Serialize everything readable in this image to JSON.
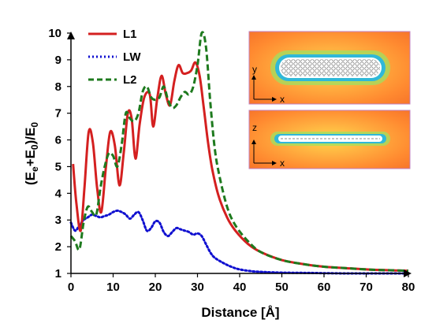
{
  "chart_data": {
    "type": "line",
    "xlabel": "Distance [Å]",
    "ylabel_parts": [
      "(E",
      "e",
      "+E",
      "0",
      ")/E",
      "0"
    ],
    "xlim": [
      0,
      80
    ],
    "ylim": [
      1,
      10
    ],
    "xticks": [
      "0",
      "10",
      "20",
      "30",
      "40",
      "50",
      "60",
      "70",
      "80"
    ],
    "yticks": [
      "1",
      "2",
      "3",
      "4",
      "5",
      "6",
      "7",
      "8",
      "9",
      "10"
    ],
    "legend_position": "top-left",
    "series": [
      {
        "name": "L1",
        "color": "#d42020",
        "style": "solid",
        "x": [
          0.5,
          1.3,
          2.3,
          3.2,
          4.2,
          5.2,
          6.2,
          7.2,
          8.3,
          9.3,
          10.4,
          11.5,
          12.5,
          13.5,
          14.4,
          15.3,
          16.3,
          17.4,
          18.7,
          19.5,
          20.5,
          21.5,
          22.5,
          23.5,
          24.5,
          25.5,
          26.5,
          27.5,
          28.5,
          29.5,
          30.5,
          31.5,
          32.5,
          33.5,
          35,
          37,
          39,
          42,
          45,
          50,
          55,
          60,
          65,
          70,
          75,
          80
        ],
        "y": [
          5.1,
          3.6,
          2.6,
          4.2,
          6.3,
          5.9,
          4.2,
          3.3,
          5.0,
          6.3,
          5.8,
          4.3,
          5.5,
          7.0,
          6.8,
          5.3,
          6.6,
          7.6,
          7.7,
          6.5,
          7.6,
          8.4,
          7.7,
          7.3,
          8.2,
          8.8,
          8.5,
          8.5,
          8.6,
          8.9,
          8.4,
          7.2,
          5.9,
          4.9,
          3.9,
          3.1,
          2.6,
          2.1,
          1.8,
          1.5,
          1.35,
          1.25,
          1.2,
          1.15,
          1.12,
          1.1
        ]
      },
      {
        "name": "LW",
        "color": "#1010d0",
        "style": "dotted",
        "x": [
          0,
          1,
          2,
          3,
          4,
          5,
          6,
          7,
          8,
          9,
          10,
          11,
          12,
          13,
          14,
          15,
          16,
          17,
          18,
          19,
          20,
          21,
          22,
          23,
          24,
          25,
          26,
          27,
          28,
          29,
          30,
          31,
          32,
          33,
          34,
          36,
          38,
          40,
          43,
          46,
          50,
          55,
          60,
          65,
          70,
          75,
          80
        ],
        "y": [
          2.9,
          2.6,
          2.8,
          3.0,
          3.1,
          3.2,
          3.15,
          3.1,
          3.15,
          3.2,
          3.3,
          3.35,
          3.3,
          3.2,
          3.05,
          3.2,
          3.3,
          3.0,
          2.6,
          2.7,
          2.95,
          2.9,
          2.55,
          2.4,
          2.55,
          2.7,
          2.65,
          2.6,
          2.55,
          2.45,
          2.5,
          2.4,
          2.1,
          1.8,
          1.6,
          1.4,
          1.25,
          1.15,
          1.08,
          1.05,
          1.03,
          1.02,
          1.01,
          1.0,
          1.0,
          1.0,
          1.0
        ]
      },
      {
        "name": "L2",
        "color": "#1e7a1e",
        "style": "dashed",
        "x": [
          0,
          1,
          2,
          3,
          4,
          5,
          6,
          7,
          8,
          9,
          10,
          11,
          12,
          13,
          14,
          15,
          16,
          17,
          18,
          19,
          20,
          21,
          22,
          23,
          24,
          25,
          26,
          27,
          28,
          29,
          30,
          31,
          32,
          33,
          34,
          35,
          37,
          39,
          42,
          45,
          50,
          55,
          60,
          65,
          70,
          75,
          80
        ],
        "y": [
          2.4,
          2.2,
          1.9,
          2.9,
          3.5,
          3.3,
          3.2,
          4.2,
          5.0,
          5.5,
          5.4,
          5.0,
          5.8,
          7.0,
          6.8,
          6.7,
          7.0,
          7.8,
          8.0,
          7.6,
          7.5,
          7.6,
          8.0,
          7.5,
          7.2,
          7.3,
          7.6,
          7.8,
          7.7,
          8.0,
          8.8,
          10.0,
          9.5,
          7.5,
          5.8,
          4.8,
          3.5,
          2.8,
          2.2,
          1.8,
          1.5,
          1.35,
          1.25,
          1.2,
          1.15,
          1.12,
          1.1
        ]
      }
    ],
    "insets": [
      {
        "name": "xy-plane",
        "axis_v": "y",
        "axis_h": "x"
      },
      {
        "name": "xz-plane",
        "axis_v": "z",
        "axis_h": "x"
      }
    ]
  }
}
